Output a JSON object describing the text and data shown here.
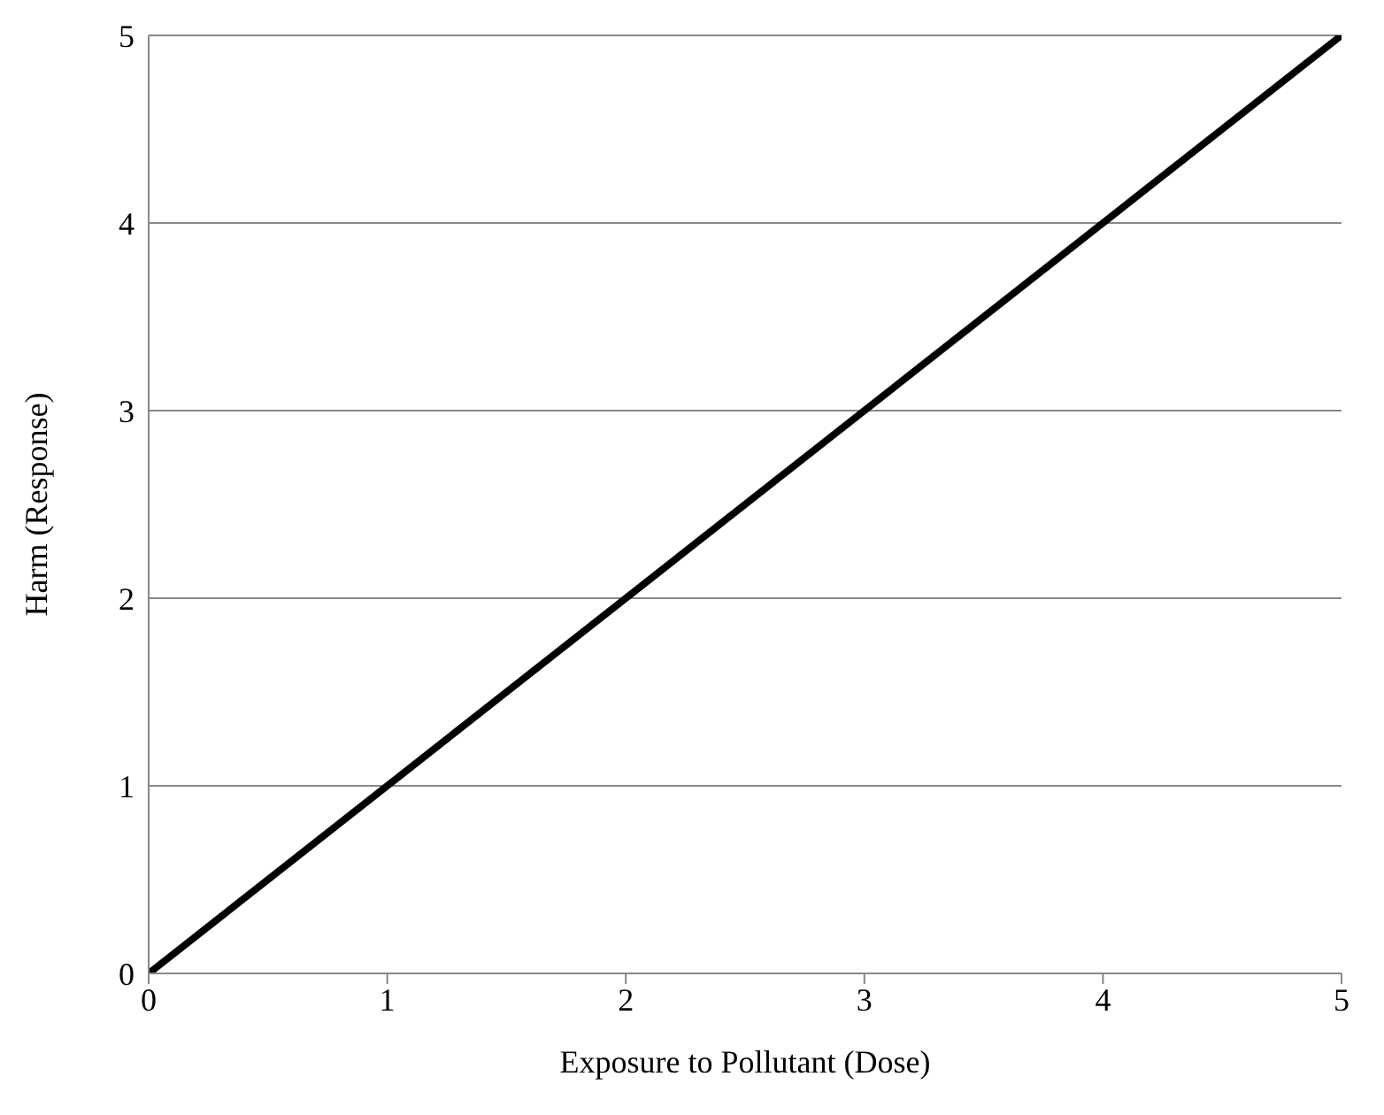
{
  "chart_data": {
    "type": "line",
    "xlabel": "Exposure to Pollutant (Dose)",
    "ylabel": "Harm (Response)",
    "x": [
      0,
      5
    ],
    "series": [
      {
        "color": "#000000",
        "values": [
          0,
          5
        ]
      }
    ],
    "xlim": [
      0,
      5
    ],
    "ylim": [
      0,
      5
    ],
    "xticks": [
      0,
      1,
      2,
      3,
      4,
      5
    ],
    "yticks": [
      0,
      1,
      2,
      3,
      4,
      5
    ],
    "grid": "y",
    "legend": false,
    "marker": "none",
    "line_style": "solid"
  }
}
